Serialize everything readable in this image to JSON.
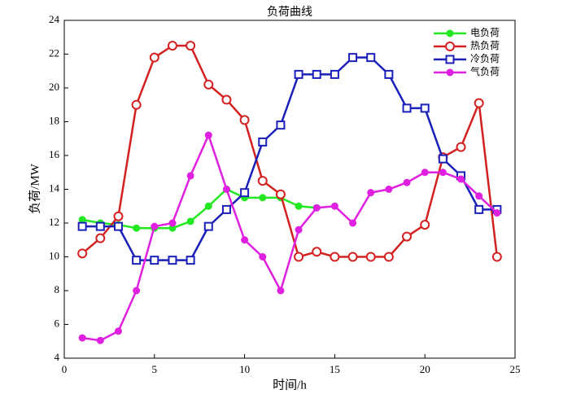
{
  "chart_data": {
    "type": "line",
    "title": "负荷曲线",
    "x_label": "时间/h",
    "y_label": "负荷/MW",
    "x": [
      1,
      2,
      3,
      4,
      5,
      6,
      7,
      8,
      9,
      10,
      11,
      12,
      13,
      14,
      15,
      16,
      17,
      18,
      19,
      20,
      21,
      22,
      23,
      24
    ],
    "series": [
      {
        "name": "电负荷",
        "color": "#22e822",
        "marker": "circle-filled",
        "values": [
          12.2,
          12.0,
          11.9,
          11.7,
          11.7,
          11.7,
          12.1,
          13.0,
          14.0,
          13.5,
          13.5,
          13.5,
          13.0,
          12.9,
          null,
          null,
          null,
          null,
          null,
          null,
          null,
          null,
          null,
          null
        ]
      },
      {
        "name": "热负荷",
        "color": "#d42020",
        "marker": "circle-open",
        "values": [
          10.2,
          11.1,
          12.4,
          19.0,
          21.8,
          22.5,
          22.5,
          20.2,
          19.3,
          18.1,
          14.5,
          13.7,
          10.0,
          10.3,
          10.0,
          10.0,
          10.0,
          10.0,
          11.2,
          11.9,
          15.9,
          16.5,
          19.1,
          10.0
        ]
      },
      {
        "name": "冷负荷",
        "color": "#1a20b8",
        "marker": "square-open",
        "values": [
          11.8,
          11.8,
          11.8,
          9.8,
          9.8,
          9.8,
          9.8,
          11.8,
          12.8,
          13.8,
          16.8,
          17.8,
          20.8,
          20.8,
          20.8,
          21.8,
          21.8,
          20.8,
          18.8,
          18.8,
          15.8,
          14.8,
          12.8,
          12.8
        ]
      },
      {
        "name": "气负荷",
        "color": "#e020e0",
        "marker": "circle-filled",
        "values": [
          5.2,
          5.05,
          5.6,
          8.0,
          11.8,
          12.0,
          14.8,
          17.2,
          14.0,
          11.0,
          10.0,
          8.0,
          11.6,
          12.9,
          13.0,
          12.0,
          13.8,
          14.0,
          14.4,
          15.0,
          15.0,
          14.6,
          13.6,
          12.6
        ]
      }
    ],
    "xlim": [
      0,
      25
    ],
    "xticks": [
      0,
      5,
      10,
      15,
      20,
      25
    ],
    "ylim": [
      4,
      24
    ],
    "yticks": [
      4,
      6,
      8,
      10,
      12,
      14,
      16,
      18,
      20,
      22,
      24
    ],
    "legend": "upper-right"
  }
}
